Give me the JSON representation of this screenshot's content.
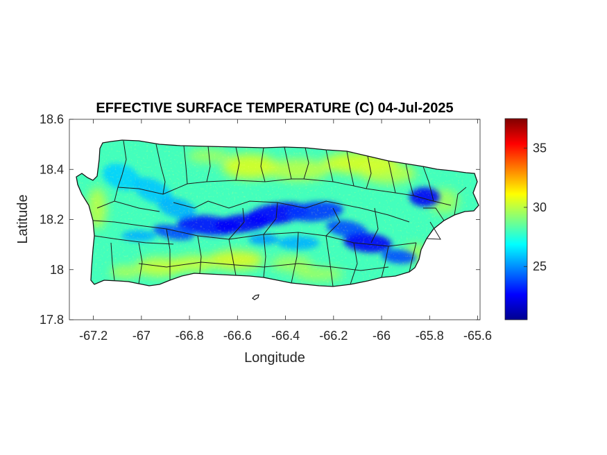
{
  "chart_data": {
    "type": "heatmap",
    "title": "EFFECTIVE SURFACE TEMPERATURE (C) 04-Jul-2025",
    "xlabel": "Longitude",
    "ylabel": "Latitude",
    "xlim": [
      -67.3,
      -65.59
    ],
    "ylim": [
      17.8,
      18.6
    ],
    "xticks": [
      -67.2,
      -67,
      -66.8,
      -66.6,
      -66.4,
      -66.2,
      -66,
      -65.8,
      -65.6
    ],
    "xtick_labels": [
      "-67.2",
      "-67",
      "-66.8",
      "-66.6",
      "-66.4",
      "-66.2",
      "-66",
      "-65.8",
      "-65.6"
    ],
    "yticks": [
      17.8,
      18,
      18.2,
      18.4,
      18.6
    ],
    "ytick_labels": [
      "17.8",
      "18",
      "18.2",
      "18.4",
      "18.6"
    ],
    "colormap": "jet",
    "colorbar": {
      "limits": [
        20.5,
        37.5
      ],
      "ticks": [
        25,
        30,
        35
      ],
      "tick_labels": [
        "25",
        "30",
        "35"
      ]
    },
    "grid": false,
    "typical_value": 28,
    "cool_zone_min_value": 21
  }
}
